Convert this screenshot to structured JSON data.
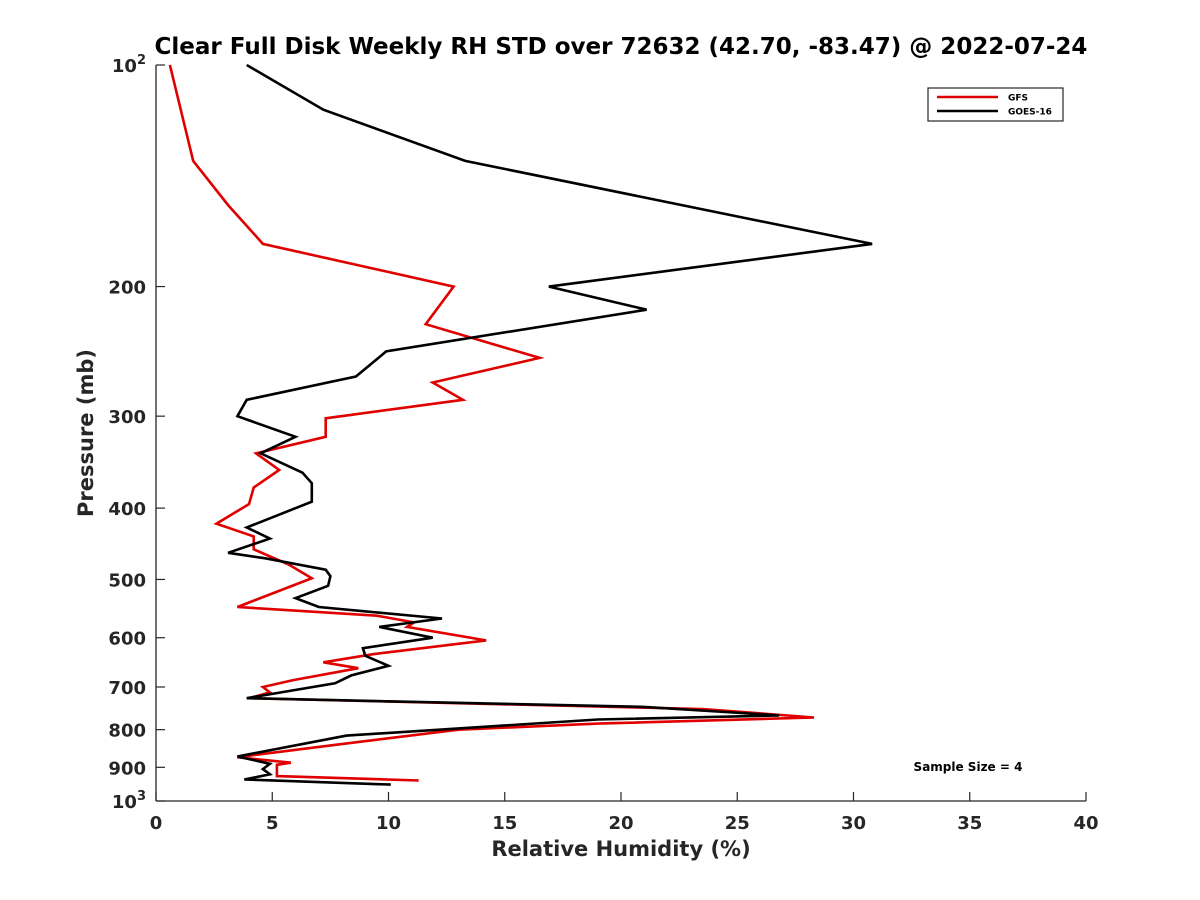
{
  "chart_data": {
    "type": "line",
    "title": "Clear Full Disk Weekly RH STD over 72632 (42.70, -83.47) @ 2022-07-24",
    "xlabel": "Relative Humidity (%)",
    "ylabel": "Pressure (mb)",
    "xlim": [
      0,
      40
    ],
    "ylim": [
      100,
      1000
    ],
    "y_scale": "log",
    "y_reversed": true,
    "x_ticks": [
      "0",
      "5",
      "10",
      "15",
      "20",
      "25",
      "30",
      "35",
      "40"
    ],
    "y_ticks": [
      {
        "value": 100,
        "label": "10",
        "sup": "2"
      },
      {
        "value": 200,
        "label": "200"
      },
      {
        "value": 300,
        "label": "300"
      },
      {
        "value": 400,
        "label": "400"
      },
      {
        "value": 500,
        "label": "500"
      },
      {
        "value": 600,
        "label": "600"
      },
      {
        "value": 700,
        "label": "700"
      },
      {
        "value": 800,
        "label": "800"
      },
      {
        "value": 900,
        "label": "900"
      },
      {
        "value": 1000,
        "label": "10",
        "sup": "3"
      }
    ],
    "grid": false,
    "legend_position": "top-right",
    "annotation": "Sample Size = 4",
    "series": [
      {
        "name": "GFS",
        "color": "#e00000",
        "points": [
          [
            0.6,
            100
          ],
          [
            1.6,
            135
          ],
          [
            3.1,
            155
          ],
          [
            4.6,
            175
          ],
          [
            12.8,
            200
          ],
          [
            11.6,
            225
          ],
          [
            16.5,
            250
          ],
          [
            11.9,
            270
          ],
          [
            13.2,
            285
          ],
          [
            7.3,
            302
          ],
          [
            7.3,
            320
          ],
          [
            4.3,
            337
          ],
          [
            5.3,
            355
          ],
          [
            4.2,
            375
          ],
          [
            4.0,
            395
          ],
          [
            2.6,
            420
          ],
          [
            4.2,
            437
          ],
          [
            4.2,
            455
          ],
          [
            5.7,
            477
          ],
          [
            6.7,
            498
          ],
          [
            3.5,
            545
          ],
          [
            9.5,
            560
          ],
          [
            11.1,
            572
          ],
          [
            10.8,
            580
          ],
          [
            14.2,
            605
          ],
          [
            9.3,
            632
          ],
          [
            7.2,
            648
          ],
          [
            8.7,
            660
          ],
          [
            5.9,
            685
          ],
          [
            4.6,
            700
          ],
          [
            4.9,
            712
          ],
          [
            4.0,
            725
          ],
          [
            23.5,
            750
          ],
          [
            28.3,
            770
          ],
          [
            19.0,
            785
          ],
          [
            13.0,
            800
          ],
          [
            8.2,
            835
          ],
          [
            3.5,
            872
          ],
          [
            5.8,
            887
          ],
          [
            5.2,
            893
          ],
          [
            5.2,
            925
          ],
          [
            11.3,
            938
          ]
        ]
      },
      {
        "name": "GOES-16",
        "color": "#000000",
        "points": [
          [
            3.9,
            100
          ],
          [
            7.2,
            115
          ],
          [
            13.3,
            135
          ],
          [
            30.8,
            175
          ],
          [
            16.9,
            200
          ],
          [
            21.1,
            215
          ],
          [
            9.9,
            245
          ],
          [
            8.6,
            265
          ],
          [
            3.9,
            285
          ],
          [
            3.5,
            300
          ],
          [
            6.0,
            320
          ],
          [
            4.5,
            337
          ],
          [
            6.3,
            358
          ],
          [
            6.7,
            370
          ],
          [
            6.7,
            392
          ],
          [
            3.9,
            425
          ],
          [
            4.9,
            440
          ],
          [
            3.1,
            460
          ],
          [
            4.7,
            468
          ],
          [
            7.3,
            485
          ],
          [
            7.5,
            495
          ],
          [
            7.4,
            510
          ],
          [
            6.0,
            530
          ],
          [
            7.0,
            545
          ],
          [
            12.3,
            565
          ],
          [
            9.6,
            580
          ],
          [
            11.9,
            600
          ],
          [
            8.9,
            620
          ],
          [
            9.0,
            635
          ],
          [
            10.0,
            655
          ],
          [
            8.4,
            675
          ],
          [
            7.7,
            692
          ],
          [
            3.9,
            725
          ],
          [
            21.0,
            745
          ],
          [
            26.8,
            765
          ],
          [
            19.0,
            775
          ],
          [
            8.2,
            815
          ],
          [
            3.5,
            870
          ],
          [
            4.9,
            890
          ],
          [
            4.6,
            905
          ],
          [
            4.9,
            920
          ],
          [
            3.8,
            935
          ],
          [
            10.1,
            950
          ]
        ]
      }
    ]
  }
}
